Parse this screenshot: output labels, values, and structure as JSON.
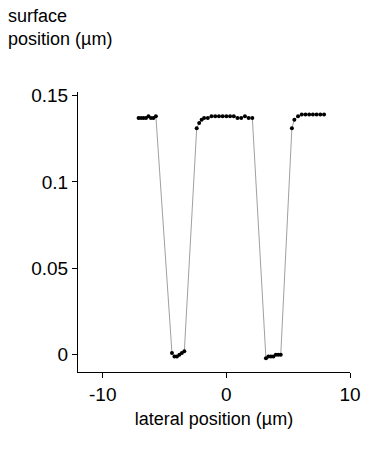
{
  "chart_data": {
    "type": "scatter",
    "x_label": "lateral position (µm)",
    "y_label": "surface position (µm)",
    "x": [
      -7.1,
      -6.9,
      -6.7,
      -6.5,
      -6.3,
      -6.1,
      -5.9,
      -5.7,
      -4.4,
      -4.2,
      -4.0,
      -3.8,
      -3.6,
      -3.4,
      -2.4,
      -2.2,
      -2.0,
      -1.8,
      -1.5,
      -1.2,
      -0.9,
      -0.6,
      -0.3,
      0,
      0.3,
      0.6,
      0.9,
      1.2,
      1.5,
      1.8,
      2.1,
      3.2,
      3.4,
      3.6,
      3.8,
      4.0,
      4.2,
      4.4,
      5.3,
      5.5,
      5.8,
      6.1,
      6.4,
      6.7,
      7.0,
      7.3,
      7.6,
      7.9
    ],
    "values": [
      0.137,
      0.137,
      0.137,
      0.137,
      0.138,
      0.137,
      0.137,
      0.138,
      0.001,
      -0.001,
      -0.001,
      0,
      0.001,
      0.002,
      0.131,
      0.134,
      0.136,
      0.137,
      0.137,
      0.138,
      0.138,
      0.138,
      0.138,
      0.138,
      0.138,
      0.138,
      0.137,
      0.137,
      0.138,
      0.137,
      0.137,
      -0.002,
      -0.001,
      -0.001,
      -0.001,
      0,
      0,
      0,
      0.131,
      0.136,
      0.138,
      0.139,
      0.139,
      0.139,
      0.139,
      0.139,
      0.139,
      0.139
    ],
    "color": "#000000",
    "marker": "circle",
    "line_style": "solid",
    "xlim": [
      -12,
      10
    ],
    "ylim": [
      -0.01,
      0.152
    ],
    "xticks": [
      -10,
      0,
      10
    ],
    "yticks": [
      0,
      0.05,
      0.1,
      0.15
    ],
    "grid": false
  }
}
